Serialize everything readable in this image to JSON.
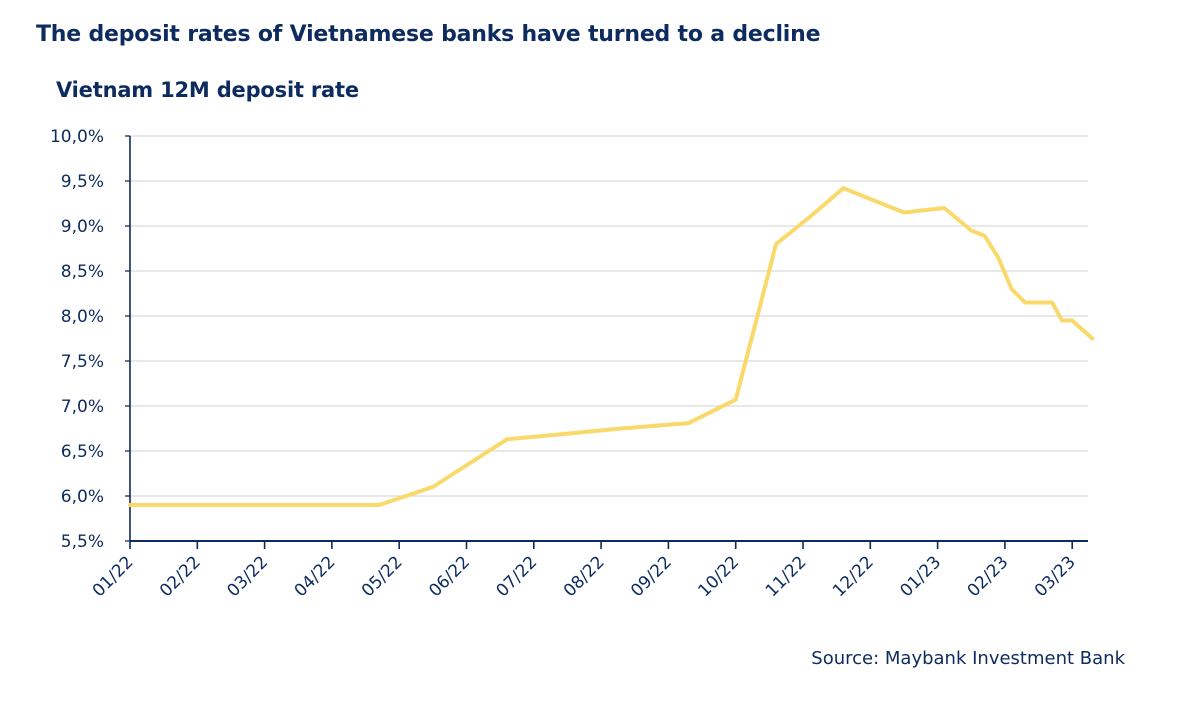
{
  "headline": "The deposit rates of Vietnamese banks have turned to a decline",
  "source": "Source: Maybank Investment Bank",
  "colors": {
    "line": "#f9d96a",
    "axis": "#0d2b5e",
    "grid": "#d9d9d9",
    "text": "#0d2b5e"
  },
  "chart_data": {
    "type": "line",
    "title": "Vietnam 12M deposit rate",
    "xlabel": "",
    "ylabel": "",
    "ylim": [
      5.5,
      10.0
    ],
    "y_ticks": [
      "5,5%",
      "6,0%",
      "6,5%",
      "7,0%",
      "7,5%",
      "8,0%",
      "8,5%",
      "9,0%",
      "9,5%",
      "10,0%"
    ],
    "x_ticks": [
      "01/22",
      "02/22",
      "03/22",
      "04/22",
      "05/22",
      "06/22",
      "07/22",
      "08/22",
      "09/22",
      "10/22",
      "11/22",
      "12/22",
      "01/23",
      "02/23",
      "03/23"
    ],
    "grid": true,
    "legend": "none",
    "series": [
      {
        "x": [
          0,
          3.7,
          4.5,
          5.6,
          6.6,
          7.3,
          8.3,
          9.0,
          9.6,
          10.1,
          10.6,
          11.5,
          12.1,
          12.5,
          12.7,
          12.9,
          13.1,
          13.3,
          13.7,
          13.85,
          14.0,
          14.15,
          14.3
        ],
        "values": [
          5.9,
          5.9,
          6.1,
          6.63,
          6.7,
          6.75,
          6.81,
          7.07,
          8.8,
          9.1,
          9.42,
          9.15,
          9.2,
          8.95,
          8.89,
          8.65,
          8.3,
          8.15,
          8.15,
          7.95,
          7.95,
          7.85,
          7.75
        ]
      }
    ]
  }
}
